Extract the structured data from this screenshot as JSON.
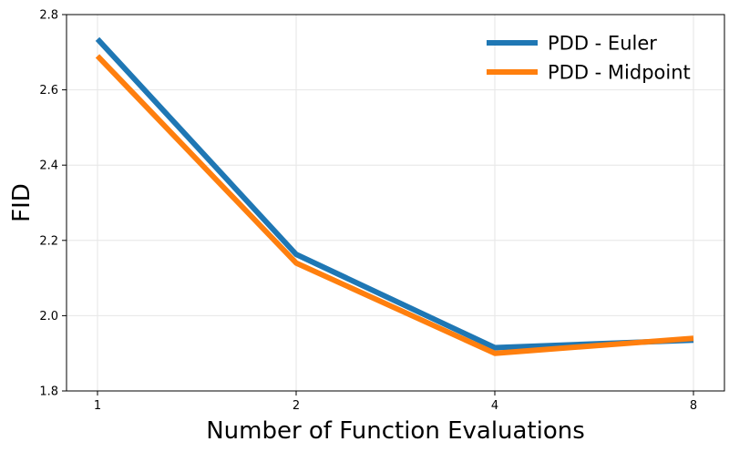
{
  "chart_data": {
    "type": "line",
    "title": "",
    "xlabel": "Number of Function Evaluations",
    "ylabel": "FID",
    "x_scale": "log2",
    "categories": [
      "1",
      "2",
      "4",
      "8"
    ],
    "x": [
      1,
      2,
      4,
      8
    ],
    "ylim": [
      1.8,
      2.8
    ],
    "yticks": [
      "1.8",
      "2.0",
      "2.2",
      "2.4",
      "2.6",
      "2.8"
    ],
    "grid": true,
    "legend_position": "top-right",
    "series": [
      {
        "name": "PDD - Euler",
        "color": "#1f77b4",
        "values": [
          2.735,
          2.163,
          1.915,
          1.935
        ]
      },
      {
        "name": "PDD - Midpoint",
        "color": "#ff7f0e",
        "values": [
          2.69,
          2.14,
          1.9,
          1.94
        ]
      }
    ]
  }
}
